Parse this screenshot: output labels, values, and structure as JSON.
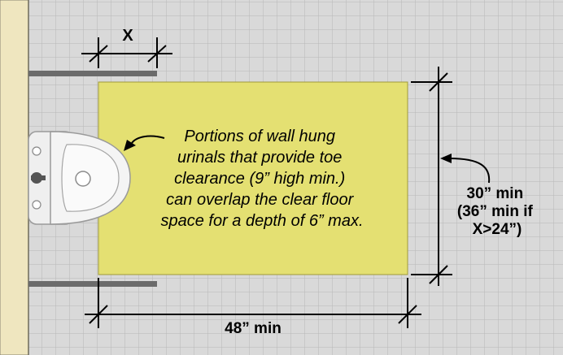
{
  "dimensions": {
    "x_label": "X",
    "width_label": "48” min",
    "depth_lines": [
      "30” min",
      "(36” min if",
      "X>24”)"
    ]
  },
  "note_lines": [
    "Portions of wall hung",
    "urinals that provide toe",
    "clearance (9” high min.)",
    "can overlap the clear floor",
    "space for a depth of 6” max."
  ],
  "colors": {
    "clear_floor_space": "#e4e072",
    "wall": "#efe6bf",
    "grid_background": "#d9d9d9",
    "grid_lines": "#b8b8b8"
  }
}
